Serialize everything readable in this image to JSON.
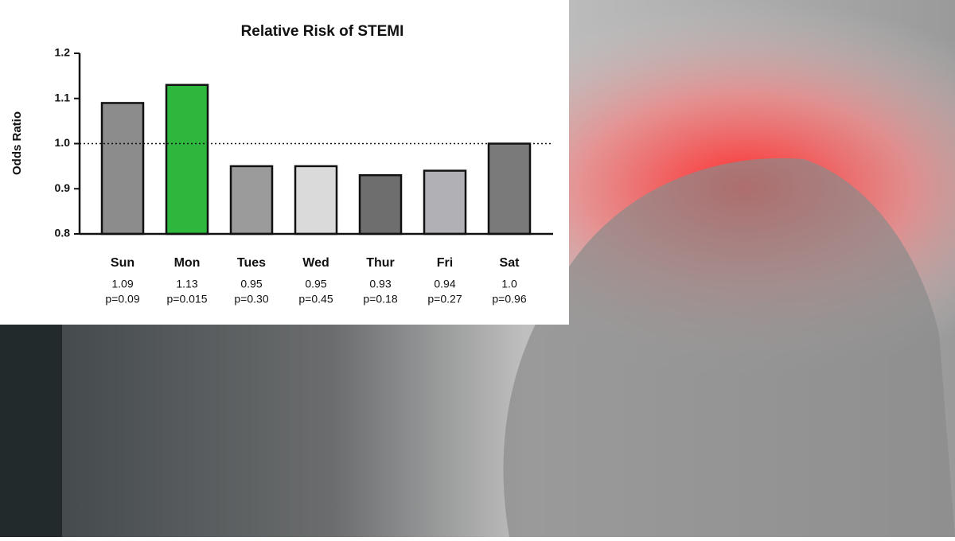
{
  "chart_data": {
    "type": "bar",
    "title": "Relative Risk of STEMI",
    "y_label": "Odds Ratio",
    "categories": [
      "Sun",
      "Mon",
      "Tues",
      "Wed",
      "Thur",
      "Fri",
      "Sat"
    ],
    "values": [
      1.09,
      1.13,
      0.95,
      0.95,
      0.93,
      0.94,
      1.0
    ],
    "value_labels": [
      "1.09",
      "1.13",
      "0.95",
      "0.95",
      "0.93",
      "0.94",
      "1.0"
    ],
    "p_values": [
      "p=0.09",
      "p=0.015",
      "p=0.30",
      "p=0.45",
      "p=0.18",
      "p=0.27",
      "p=0.96"
    ],
    "colors": [
      "#8c8c8c",
      "#2db83d",
      "#9b9b9b",
      "#dadada",
      "#6e6e6e",
      "#b1b1b5",
      "#7a7a7a"
    ],
    "ylim": [
      0.8,
      1.2
    ],
    "yticks": [
      0.8,
      0.9,
      {
        "value": 1,
        "label": "1.0"
      },
      1.1,
      1.2
    ],
    "reference_line": 1
  }
}
